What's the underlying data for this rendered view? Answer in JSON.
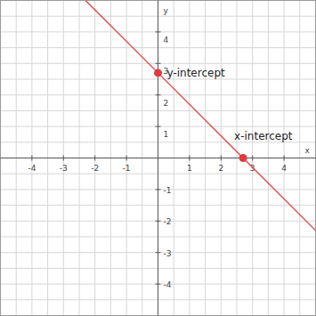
{
  "chart_data": {
    "type": "line",
    "x": [
      -2.3,
      0,
      2.7,
      5
    ],
    "values": [
      5,
      2.7,
      0,
      -2.3
    ],
    "color": "#e0393e",
    "xlim": [
      -5,
      5
    ],
    "ylim": [
      -5,
      5
    ],
    "xticks": [
      -4,
      -3,
      -2,
      -1,
      1,
      2,
      3,
      4
    ],
    "yticks": [
      -4,
      -3,
      -2,
      -1,
      1,
      2,
      3,
      4
    ],
    "grid": true,
    "xlabel": "x",
    "ylabel": "y",
    "annotations": [
      {
        "text": "y-intercept",
        "x": 0,
        "y": 2.7
      },
      {
        "text": "x-intercept",
        "x": 2.7,
        "y": 0
      }
    ]
  }
}
